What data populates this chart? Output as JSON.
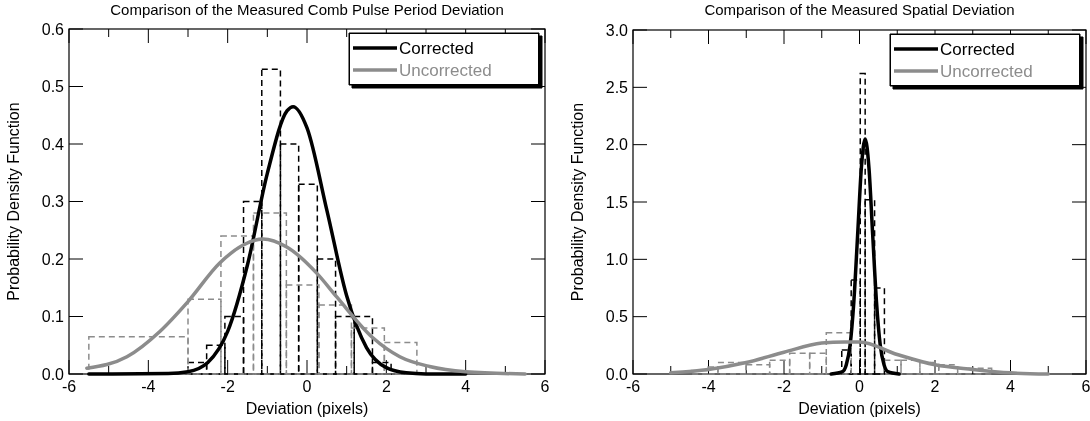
{
  "chart_data": [
    {
      "type": "line",
      "title": "Comparison of the Measured Comb Pulse Period Deviation",
      "xlabel": "Deviation (pixels)",
      "ylabel": "Probability Density Function",
      "xlim": [
        -6,
        6
      ],
      "xticks": [
        -6,
        {
          "value": -5,
          "label": null
        },
        -4,
        {
          "value": -3,
          "label": null
        },
        -2,
        {
          "value": -1,
          "label": null
        },
        0,
        {
          "value": 1,
          "label": null
        },
        2,
        {
          "value": 3,
          "label": null
        },
        4,
        {
          "value": 5,
          "label": null
        },
        6
      ],
      "ylim": [
        0,
        0.6
      ],
      "yticks": [
        {
          "value": 0,
          "label": "0.0"
        },
        0.1,
        0.2,
        0.3,
        0.4,
        0.5,
        0.6
      ],
      "legend": "top right",
      "series": [
        {
          "type": "histogram",
          "color": "#000000",
          "line_style": "dashed",
          "bins": [
            -3.0,
            -2.53,
            -2.07,
            -1.6,
            -1.14,
            -0.67,
            -0.21,
            0.26,
            0.72,
            1.19,
            1.65,
            2.12
          ],
          "values": [
            0.02,
            0.05,
            0.1,
            0.3,
            0.53,
            0.4,
            0.33,
            0.2,
            0.1,
            0.1,
            0.02
          ]
        },
        {
          "type": "histogram",
          "color": "#8c8c8c",
          "line_style": "dashed",
          "bins": [
            -5.5,
            -3.0,
            -2.17,
            -1.35,
            -0.52,
            0.3,
            1.12,
            1.95,
            2.77
          ],
          "values": [
            0.065,
            0.13,
            0.24,
            0.28,
            0.155,
            0.12,
            0.08,
            0.055
          ]
        },
        {
          "name": "Corrected",
          "color": "#000000",
          "line_style": "solid",
          "x": [
            -5.5,
            -3.5,
            -3.0,
            -2.5,
            -2.0,
            -1.5,
            -1.0,
            -0.5,
            -0.35,
            0,
            0.5,
            1.0,
            1.5,
            2.0,
            2.5,
            3.0,
            4.0
          ],
          "values": [
            0,
            0.001,
            0.004,
            0.02,
            0.074,
            0.19,
            0.349,
            0.458,
            0.465,
            0.428,
            0.285,
            0.136,
            0.046,
            0.011,
            0.002,
            0,
            0
          ]
        },
        {
          "name": "Uncorrected",
          "color": "#8c8c8c",
          "line_style": "solid",
          "x": [
            -5.55,
            -4.54,
            -3.71,
            -3.0,
            -2.2,
            -1.62,
            -1.11,
            -0.51,
            0.25,
            0.75,
            1.66,
            2.34,
            3.09,
            4.0,
            5.5
          ],
          "values": [
            0.01,
            0.03,
            0.074,
            0.126,
            0.193,
            0.224,
            0.235,
            0.221,
            0.175,
            0.134,
            0.063,
            0.03,
            0.013,
            0.004,
            0
          ]
        }
      ]
    },
    {
      "type": "line",
      "title": "Comparison of the Measured Spatial Deviation",
      "xlabel": "Deviation (pixels)",
      "ylabel": "Probability Density Function",
      "xlim": [
        -6,
        6
      ],
      "xticks": [
        -6,
        {
          "value": -5,
          "label": null
        },
        -4,
        {
          "value": -3,
          "label": null
        },
        -2,
        {
          "value": -1,
          "label": null
        },
        0,
        {
          "value": 1,
          "label": null
        },
        2,
        {
          "value": 3,
          "label": null
        },
        4,
        {
          "value": 5,
          "label": null
        },
        6
      ],
      "ylim": [
        0,
        3
      ],
      "yticks": [
        {
          "value": 0,
          "label": "0.0"
        },
        0.5,
        {
          "value": 1,
          "label": "1.0"
        },
        1.5,
        {
          "value": 2,
          "label": "2.0"
        },
        2.5,
        {
          "value": 3,
          "label": "3.0"
        }
      ],
      "legend": "top right",
      "series": [
        {
          "type": "histogram",
          "color": "#000000",
          "line_style": "dashed",
          "bins": [
            -0.47,
            -0.22,
            0.02,
            0.15,
            0.4,
            0.66
          ],
          "values": [
            0.21,
            0.82,
            2.62,
            1.52,
            0.75
          ]
        },
        {
          "type": "histogram",
          "color": "#8c8c8c",
          "line_style": "dashed",
          "bins": [
            -4.45,
            -4.01,
            -3.75,
            -3.0,
            -2.38,
            -1.85,
            -1.32,
            -0.88,
            -0.22,
            0.66,
            1.1,
            1.6,
            2.1,
            2.6,
            3.5
          ],
          "values": [
            0.03,
            0.06,
            0.1,
            0.08,
            0.12,
            0.18,
            0.18,
            0.36,
            null,
            0.12,
            0.12,
            0.1,
            0.08,
            0.05
          ]
        },
        {
          "name": "Corrected",
          "color": "#000000",
          "line_style": "solid",
          "x": [
            -0.75,
            -0.45,
            -0.35,
            -0.25,
            -0.15,
            -0.05,
            0.05,
            0.15,
            0.25,
            0.35,
            0.45,
            0.55,
            0.65,
            0.75,
            1.05
          ],
          "values": [
            0,
            0.02,
            0.08,
            0.25,
            0.63,
            1.21,
            1.8,
            2.05,
            1.8,
            1.21,
            0.63,
            0.25,
            0.08,
            0.02,
            0
          ]
        },
        {
          "name": "Uncorrected",
          "color": "#8c8c8c",
          "line_style": "solid",
          "x": [
            -5.0,
            -4.0,
            -3.0,
            -2.0,
            -1.0,
            -0.4,
            0,
            1.0,
            2.0,
            3.0,
            4.0,
            5.0
          ],
          "values": [
            0.01,
            0.04,
            0.1,
            0.19,
            0.27,
            0.28,
            0.28,
            0.17,
            0.08,
            0.04,
            0.01,
            0
          ]
        }
      ]
    }
  ]
}
